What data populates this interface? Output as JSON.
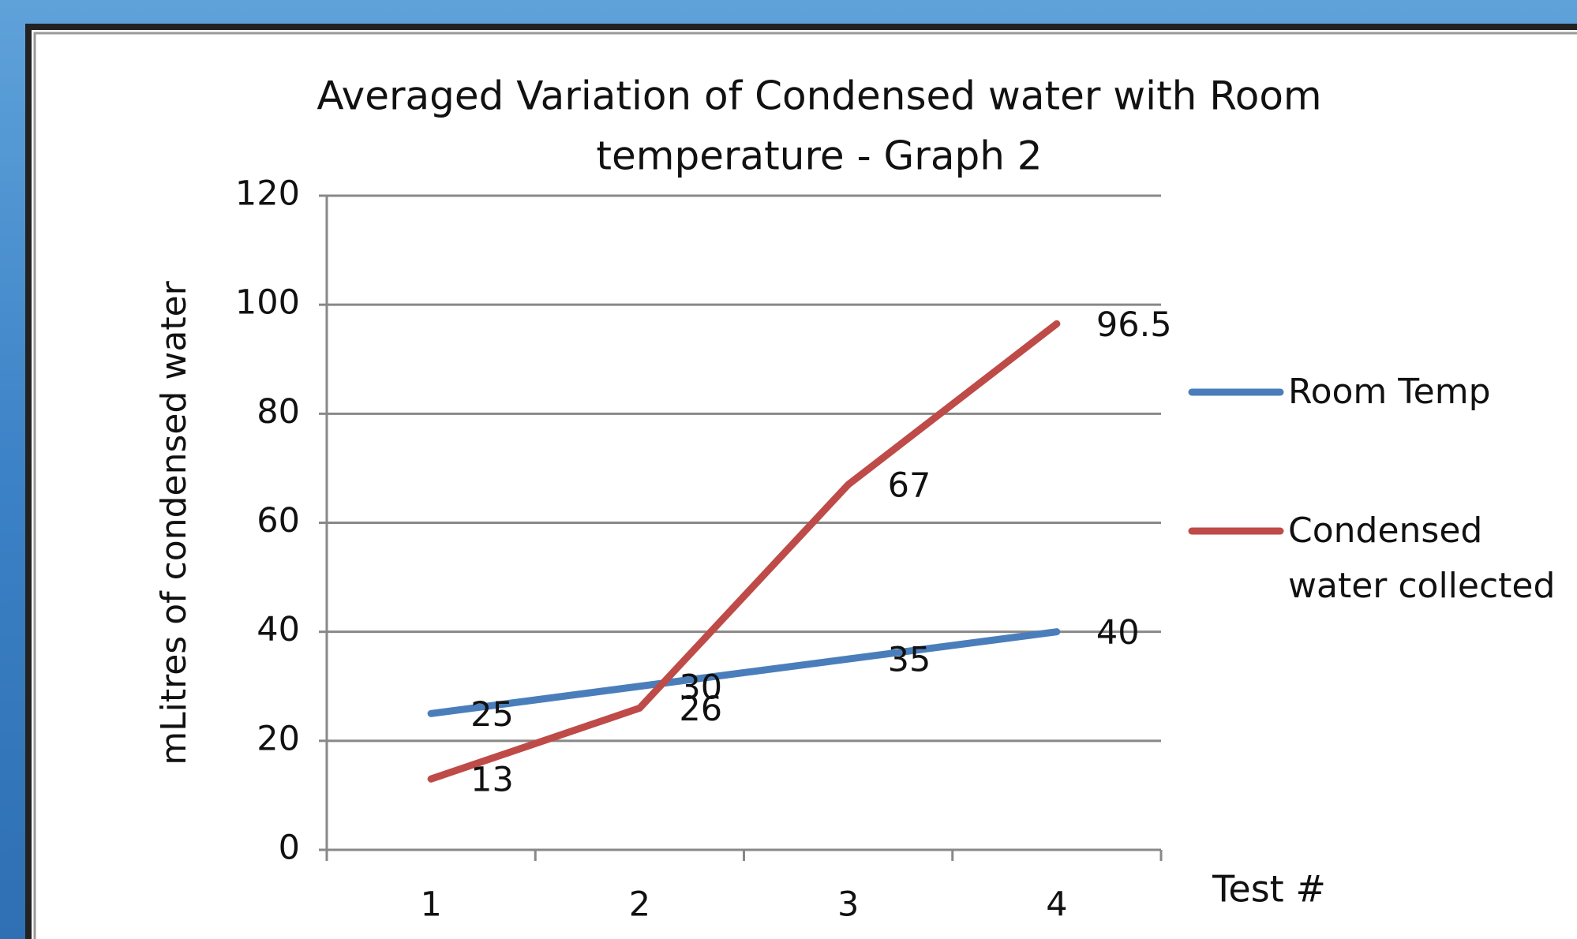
{
  "chart_data": {
    "type": "line",
    "title": "Averaged Variation of Condensed water with Room temperature - Graph 2",
    "title_lines": [
      "Averaged Variation of Condensed water with Room",
      "temperature - Graph 2"
    ],
    "x_label": "Test #",
    "y_label": "mLitres  of condensed water",
    "categories": [
      "1",
      "2",
      "3",
      "4"
    ],
    "series": [
      {
        "name": "Room Temp",
        "color": "#4a7ebb",
        "values": [
          25,
          30,
          35,
          40
        ]
      },
      {
        "name": "Condensed water collected",
        "color": "#be4b48",
        "values": [
          13,
          26,
          67,
          96.5
        ]
      }
    ],
    "ylim": [
      0,
      120
    ],
    "yticks": [
      0,
      20,
      40,
      60,
      80,
      100,
      120
    ],
    "grid": true,
    "legend": "right"
  }
}
